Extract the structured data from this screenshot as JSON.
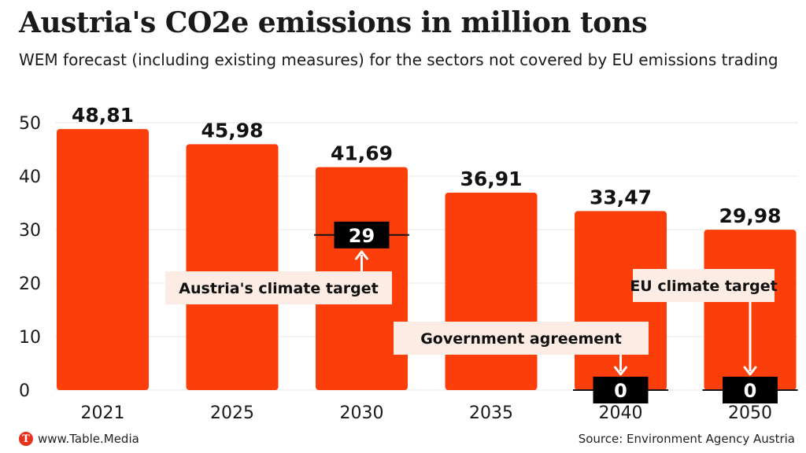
{
  "header": {
    "title": "Austria's CO2e emissions in million tons",
    "subtitle": "WEM forecast (including existing measures) for the sectors not covered by EU emissions trading"
  },
  "footer": {
    "logo_letter": "T",
    "brand": "www.Table.Media",
    "source": "Source: Environment Agency Austria"
  },
  "colors": {
    "bar": "#fc3f0a",
    "target_box": "#000000",
    "callout_bg": "#fdece3",
    "grid": "#e6e6e6"
  },
  "chart_data": {
    "type": "bar",
    "categories": [
      "2021",
      "2025",
      "2030",
      "2035",
      "2040",
      "2050"
    ],
    "values": [
      48.81,
      45.98,
      41.69,
      36.91,
      33.47,
      29.98
    ],
    "value_labels": [
      "48,81",
      "45,98",
      "41,69",
      "36,91",
      "33,47",
      "29,98"
    ],
    "ylim": [
      0,
      50
    ],
    "yticks": [
      0,
      10,
      20,
      30,
      40,
      50
    ],
    "grid": true,
    "targets": [
      {
        "category": "2030",
        "value": 29,
        "label": "29",
        "callout": "Austria's climate target"
      },
      {
        "category": "2040",
        "value": 0,
        "label": "0",
        "callout": "Government agreement"
      },
      {
        "category": "2050",
        "value": 0,
        "label": "0",
        "callout": "EU climate target"
      }
    ]
  }
}
